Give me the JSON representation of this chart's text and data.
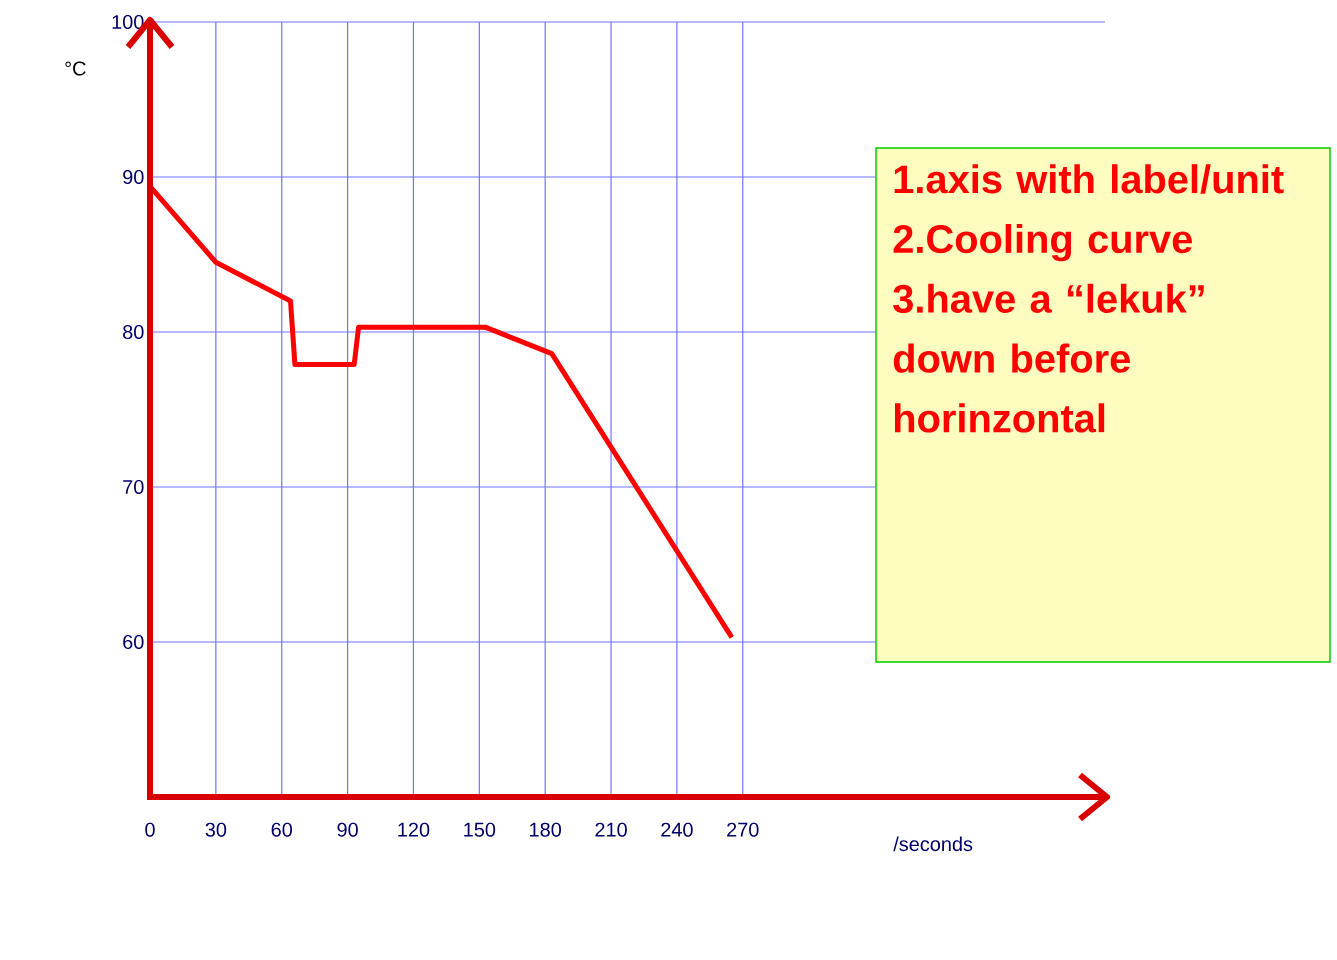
{
  "chart_data": {
    "type": "line",
    "xlabel": "/seconds",
    "ylabel": "°C",
    "x": [
      0,
      30,
      64,
      66,
      93,
      95,
      153,
      183,
      265
    ],
    "series": [
      {
        "color": "#ff0000",
        "values": [
          89.4,
          84.5,
          82,
          77.9,
          77.9,
          80.3,
          80.3,
          78.6,
          60.3
        ]
      }
    ],
    "xlim": [
      0,
      435
    ],
    "ylim": [
      50,
      100
    ],
    "xticks": [
      0,
      30,
      60,
      90,
      120,
      150,
      180,
      210,
      240,
      270
    ],
    "yticks": [
      60,
      70,
      80,
      90,
      100
    ],
    "grid": true,
    "marker": "none",
    "line_style": "solid",
    "annotations": [
      "1.axis with label/unit",
      "2.Cooling  curve",
      "3.have a “lekuk” down before horinzontal"
    ]
  }
}
